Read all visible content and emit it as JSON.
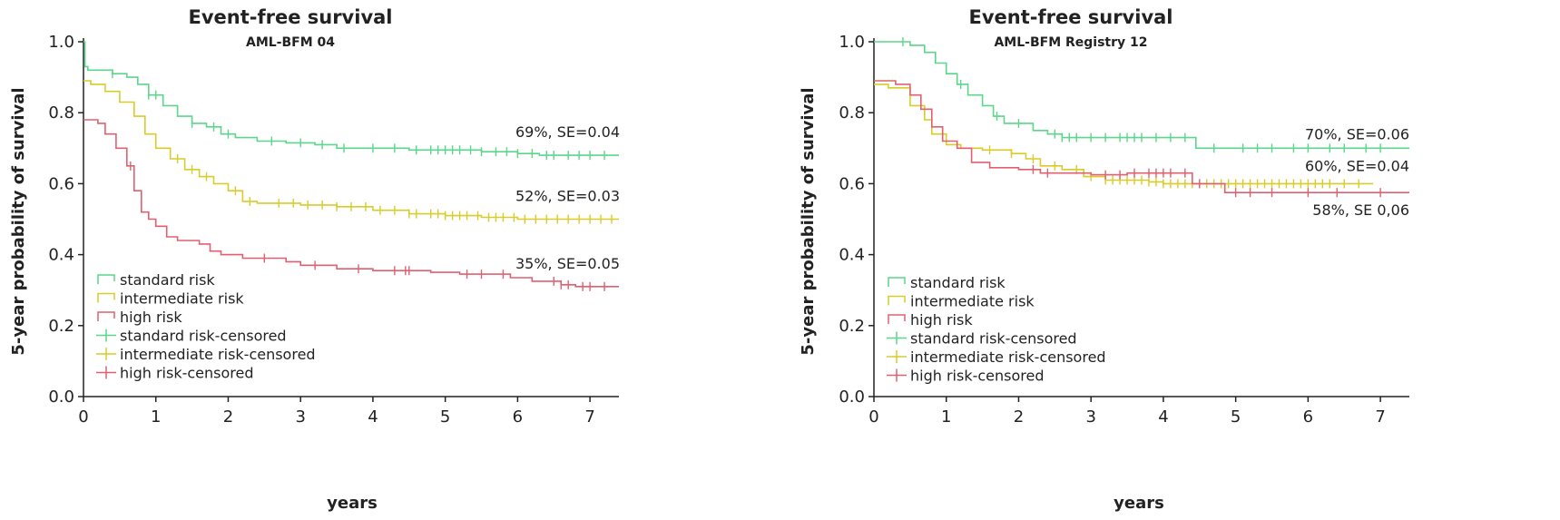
{
  "chart_data": [
    {
      "type": "line",
      "subtype": "kaplan-meier",
      "title": "Event-free survival",
      "subtitle": "AML-BFM 04",
      "xlabel": "years",
      "ylabel": "5-year probability of survival",
      "xlim": [
        0,
        7.4
      ],
      "ylim": [
        0,
        1.0
      ],
      "xticks": [
        0,
        1,
        2,
        3,
        4,
        5,
        6,
        7
      ],
      "yticks": [
        "0.0",
        "0.2",
        "0.4",
        "0.6",
        "0.8",
        "1.0"
      ],
      "legend_position": "bottom-left",
      "legend": [
        "standard risk",
        "intermediate risk",
        "high risk",
        "standard risk-censored",
        "intermediate risk-censored",
        "high risk-censored"
      ],
      "series": [
        {
          "name": "standard risk",
          "color": "#5bd68a",
          "points": [
            [
              0,
              1.0
            ],
            [
              0.02,
              0.93
            ],
            [
              0.06,
              0.92
            ],
            [
              0.4,
              0.91
            ],
            [
              0.6,
              0.9
            ],
            [
              0.75,
              0.88
            ],
            [
              0.9,
              0.85
            ],
            [
              1.1,
              0.82
            ],
            [
              1.3,
              0.79
            ],
            [
              1.5,
              0.77
            ],
            [
              1.7,
              0.76
            ],
            [
              1.9,
              0.74
            ],
            [
              2.1,
              0.73
            ],
            [
              2.4,
              0.72
            ],
            [
              2.8,
              0.715
            ],
            [
              3.2,
              0.71
            ],
            [
              3.5,
              0.7
            ],
            [
              4.2,
              0.7
            ],
            [
              4.5,
              0.695
            ],
            [
              5.5,
              0.69
            ],
            [
              6.0,
              0.685
            ],
            [
              6.3,
              0.68
            ],
            [
              7.4,
              0.68
            ]
          ],
          "censored": [
            0.4,
            0.9,
            1.0,
            1.5,
            1.8,
            2.0,
            2.6,
            3.0,
            3.3,
            3.6,
            4.0,
            4.3,
            4.6,
            4.8,
            4.9,
            5.0,
            5.1,
            5.2,
            5.35,
            5.5,
            5.7,
            5.85,
            6.0,
            6.2,
            6.4,
            6.5,
            6.7,
            6.85,
            7.0,
            7.2
          ],
          "label": "69%, SE=0.04"
        },
        {
          "name": "intermediate risk",
          "color": "#d9cc2a",
          "points": [
            [
              0,
              0.89
            ],
            [
              0.1,
              0.88
            ],
            [
              0.3,
              0.86
            ],
            [
              0.5,
              0.83
            ],
            [
              0.7,
              0.79
            ],
            [
              0.85,
              0.74
            ],
            [
              1.0,
              0.7
            ],
            [
              1.2,
              0.67
            ],
            [
              1.4,
              0.64
            ],
            [
              1.6,
              0.62
            ],
            [
              1.8,
              0.6
            ],
            [
              2.0,
              0.58
            ],
            [
              2.2,
              0.55
            ],
            [
              2.4,
              0.545
            ],
            [
              3.0,
              0.54
            ],
            [
              3.5,
              0.535
            ],
            [
              4.0,
              0.525
            ],
            [
              4.5,
              0.515
            ],
            [
              5.0,
              0.51
            ],
            [
              5.5,
              0.505
            ],
            [
              6.0,
              0.5
            ],
            [
              7.4,
              0.5
            ]
          ],
          "censored": [
            1.3,
            1.5,
            1.7,
            2.1,
            2.3,
            2.7,
            2.9,
            3.1,
            3.3,
            3.5,
            3.7,
            3.9,
            4.1,
            4.3,
            4.5,
            4.6,
            4.8,
            4.9,
            5.0,
            5.1,
            5.2,
            5.3,
            5.45,
            5.6,
            5.7,
            5.8,
            5.95,
            6.1,
            6.25,
            6.4,
            6.55,
            6.7,
            6.85,
            7.0,
            7.15,
            7.3
          ],
          "label": "52%, SE=0.03"
        },
        {
          "name": "high risk",
          "color": "#e06070",
          "points": [
            [
              0,
              0.78
            ],
            [
              0.2,
              0.77
            ],
            [
              0.3,
              0.74
            ],
            [
              0.45,
              0.7
            ],
            [
              0.6,
              0.65
            ],
            [
              0.7,
              0.58
            ],
            [
              0.8,
              0.52
            ],
            [
              0.9,
              0.5
            ],
            [
              1.0,
              0.48
            ],
            [
              1.15,
              0.45
            ],
            [
              1.3,
              0.44
            ],
            [
              1.6,
              0.43
            ],
            [
              1.75,
              0.41
            ],
            [
              1.9,
              0.4
            ],
            [
              2.2,
              0.39
            ],
            [
              2.8,
              0.38
            ],
            [
              3.0,
              0.37
            ],
            [
              3.5,
              0.36
            ],
            [
              4.0,
              0.355
            ],
            [
              4.8,
              0.35
            ],
            [
              5.2,
              0.345
            ],
            [
              5.9,
              0.335
            ],
            [
              6.2,
              0.325
            ],
            [
              6.6,
              0.315
            ],
            [
              6.8,
              0.31
            ],
            [
              7.4,
              0.31
            ]
          ],
          "censored": [
            0.65,
            2.5,
            3.2,
            3.8,
            4.3,
            4.45,
            4.5,
            5.3,
            5.5,
            5.8,
            6.5,
            6.6,
            6.7,
            6.9,
            7.0,
            7.2
          ],
          "label": "35%, SE=0.05"
        }
      ]
    },
    {
      "type": "line",
      "subtype": "kaplan-meier",
      "title": "Event-free survival",
      "subtitle": "AML-BFM Registry 12",
      "xlabel": "years",
      "ylabel": "5-year probability of survival",
      "xlim": [
        0,
        7.4
      ],
      "ylim": [
        0,
        1.0
      ],
      "xticks": [
        0,
        1,
        2,
        3,
        4,
        5,
        6,
        7
      ],
      "yticks": [
        "0.0",
        "0.2",
        "0.4",
        "0.6",
        "0.8",
        "1.0"
      ],
      "legend_position": "bottom-left",
      "legend": [
        "standard risk",
        "intermediate risk",
        "high risk",
        "standard risk-censored",
        "intermediate risk-censored",
        "high risk-censored"
      ],
      "series": [
        {
          "name": "standard risk",
          "color": "#5bd68a",
          "points": [
            [
              0,
              1.0
            ],
            [
              0.5,
              0.99
            ],
            [
              0.7,
              0.97
            ],
            [
              0.85,
              0.94
            ],
            [
              1.0,
              0.91
            ],
            [
              1.15,
              0.88
            ],
            [
              1.3,
              0.85
            ],
            [
              1.5,
              0.82
            ],
            [
              1.65,
              0.79
            ],
            [
              1.8,
              0.77
            ],
            [
              2.0,
              0.77
            ],
            [
              2.2,
              0.75
            ],
            [
              2.4,
              0.74
            ],
            [
              2.6,
              0.73
            ],
            [
              3.5,
              0.73
            ],
            [
              4.4,
              0.73
            ],
            [
              4.45,
              0.7
            ],
            [
              7.4,
              0.7
            ]
          ],
          "censored": [
            0.4,
            1.2,
            1.7,
            2.0,
            2.5,
            2.6,
            2.7,
            2.8,
            3.0,
            3.2,
            3.4,
            3.5,
            3.6,
            3.7,
            3.9,
            4.1,
            4.3,
            4.7,
            5.1,
            5.3,
            5.5,
            5.8,
            6.0,
            6.3,
            6.5,
            6.8,
            7.0
          ],
          "label": "70%, SE=0.06"
        },
        {
          "name": "intermediate risk",
          "color": "#d9cc2a",
          "points": [
            [
              0,
              0.88
            ],
            [
              0.2,
              0.87
            ],
            [
              0.5,
              0.82
            ],
            [
              0.7,
              0.78
            ],
            [
              0.8,
              0.74
            ],
            [
              1.0,
              0.71
            ],
            [
              1.2,
              0.7
            ],
            [
              1.5,
              0.695
            ],
            [
              1.9,
              0.685
            ],
            [
              2.1,
              0.67
            ],
            [
              2.3,
              0.65
            ],
            [
              2.6,
              0.64
            ],
            [
              2.9,
              0.62
            ],
            [
              3.2,
              0.61
            ],
            [
              3.8,
              0.605
            ],
            [
              4.0,
              0.6
            ],
            [
              6.9,
              0.6
            ]
          ],
          "censored": [
            1.6,
            1.9,
            2.2,
            2.5,
            2.8,
            3.0,
            3.2,
            3.3,
            3.4,
            3.5,
            3.6,
            3.7,
            3.8,
            3.9,
            4.0,
            4.1,
            4.2,
            4.3,
            4.4,
            4.5,
            4.6,
            4.7,
            4.8,
            4.9,
            5.0,
            5.1,
            5.2,
            5.3,
            5.4,
            5.5,
            5.6,
            5.7,
            5.8,
            5.9,
            6.0,
            6.1,
            6.2,
            6.3,
            6.5,
            6.7
          ],
          "label": "60%, SE=0.04"
        },
        {
          "name": "high risk",
          "color": "#e06070",
          "points": [
            [
              0,
              0.89
            ],
            [
              0.3,
              0.88
            ],
            [
              0.5,
              0.85
            ],
            [
              0.65,
              0.81
            ],
            [
              0.8,
              0.76
            ],
            [
              0.95,
              0.72
            ],
            [
              1.15,
              0.7
            ],
            [
              1.35,
              0.66
            ],
            [
              1.6,
              0.645
            ],
            [
              2.0,
              0.64
            ],
            [
              2.3,
              0.63
            ],
            [
              3.0,
              0.625
            ],
            [
              3.5,
              0.63
            ],
            [
              4.4,
              0.6
            ],
            [
              4.85,
              0.575
            ],
            [
              7.4,
              0.575
            ]
          ],
          "censored": [
            2.2,
            2.4,
            3.2,
            3.4,
            3.6,
            3.8,
            3.9,
            4.0,
            4.1,
            4.3,
            4.5,
            5.0,
            5.2,
            5.5,
            6.0,
            6.4,
            7.0
          ],
          "label": "58%, SE 0,06"
        }
      ]
    }
  ]
}
